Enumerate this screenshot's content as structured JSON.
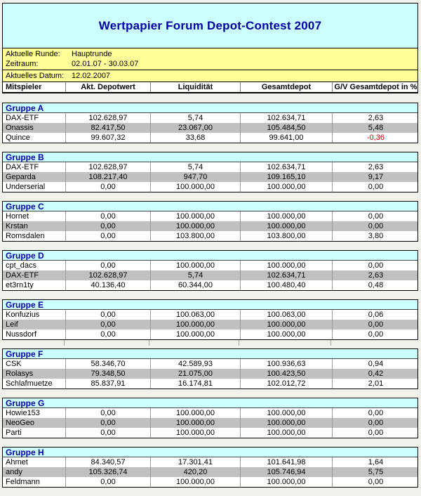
{
  "title": "Wertpapier Forum Depot-Contest 2007",
  "info": {
    "round_label": "Aktuelle Runde:",
    "round_value": "Hauptrunde",
    "period_label": "Zeitraum:",
    "period_value": "02.01.07 - 30.03.07",
    "date_label": "Aktuelles Datum:",
    "date_value": "12.02.2007"
  },
  "columns": [
    "Mitspieler",
    "Akt. Depotwert",
    "Liquidität",
    "Gesamtdepot",
    "G/V Gesamtdepot in %"
  ],
  "colors": {
    "banner_background": "#ccffff",
    "banner_text": "#0000a0",
    "info_background": "#ffff99",
    "alternate_row_background": "#c0c0c0",
    "negative_value_text": "#cc0000"
  },
  "groups": [
    {
      "name": "Gruppe A",
      "rows": [
        {
          "player": "DAX-ETF",
          "akt_depotwert": "102.628,97",
          "liquiditaet": "5,74",
          "gesamtdepot": "102.634,71",
          "gv_prozent": "2,63"
        },
        {
          "player": "Onassis",
          "akt_depotwert": "82.417,50",
          "liquiditaet": "23.067,00",
          "gesamtdepot": "105.484,50",
          "gv_prozent": "5,48"
        },
        {
          "player": "Quince",
          "akt_depotwert": "99.607,32",
          "liquiditaet": "33,68",
          "gesamtdepot": "99.641,00",
          "gv_prozent": "-0,36"
        }
      ]
    },
    {
      "name": "Gruppe B",
      "rows": [
        {
          "player": "DAX-ETF",
          "akt_depotwert": "102.628,97",
          "liquiditaet": "5,74",
          "gesamtdepot": "102.634,71",
          "gv_prozent": "2,63"
        },
        {
          "player": "Geparda",
          "akt_depotwert": "108.217,40",
          "liquiditaet": "947,70",
          "gesamtdepot": "109.165,10",
          "gv_prozent": "9,17"
        },
        {
          "player": "Underserial",
          "akt_depotwert": "0,00",
          "liquiditaet": "100.000,00",
          "gesamtdepot": "100.000,00",
          "gv_prozent": "0,00"
        }
      ]
    },
    {
      "name": "Gruppe C",
      "rows": [
        {
          "player": "Hornet",
          "akt_depotwert": "0,00",
          "liquiditaet": "100.000,00",
          "gesamtdepot": "100.000,00",
          "gv_prozent": "0,00"
        },
        {
          "player": "Krstan",
          "akt_depotwert": "0,00",
          "liquiditaet": "100.000,00",
          "gesamtdepot": "100.000,00",
          "gv_prozent": "0,00"
        },
        {
          "player": "Romsdalen",
          "akt_depotwert": "0,00",
          "liquiditaet": "103.800,00",
          "gesamtdepot": "103.800,00",
          "gv_prozent": "3,80"
        }
      ]
    },
    {
      "name": "Gruppe D",
      "rows": [
        {
          "player": "cpt_dacs",
          "akt_depotwert": "0,00",
          "liquiditaet": "100.000,00",
          "gesamtdepot": "100.000,00",
          "gv_prozent": "0,00"
        },
        {
          "player": "DAX-ETF",
          "akt_depotwert": "102.628,97",
          "liquiditaet": "5,74",
          "gesamtdepot": "102.634,71",
          "gv_prozent": "2,63"
        },
        {
          "player": "et3rn1ty",
          "akt_depotwert": "40.136,40",
          "liquiditaet": "60.344,00",
          "gesamtdepot": "100.480,40",
          "gv_prozent": "0,48"
        }
      ]
    },
    {
      "name": "Gruppe E",
      "ruled_gap_after": true,
      "rows": [
        {
          "player": "Konfuzius",
          "akt_depotwert": "0,00",
          "liquiditaet": "100.063,00",
          "gesamtdepot": "100.063,00",
          "gv_prozent": "0,06"
        },
        {
          "player": "Leif",
          "akt_depotwert": "0,00",
          "liquiditaet": "100.000,00",
          "gesamtdepot": "100.000,00",
          "gv_prozent": "0,00"
        },
        {
          "player": "Nussdorf",
          "akt_depotwert": "0,00",
          "liquiditaet": "100.000,00",
          "gesamtdepot": "100.000,00",
          "gv_prozent": "0,00"
        }
      ]
    },
    {
      "name": "Gruppe F",
      "rows": [
        {
          "player": "CSK",
          "akt_depotwert": "58.346,70",
          "liquiditaet": "42.589,93",
          "gesamtdepot": "100.936,63",
          "gv_prozent": "0,94"
        },
        {
          "player": "Rolasys",
          "akt_depotwert": "79.348,50",
          "liquiditaet": "21.075,00",
          "gesamtdepot": "100.423,50",
          "gv_prozent": "0,42"
        },
        {
          "player": "Schlafmuetze",
          "akt_depotwert": "85.837,91",
          "liquiditaet": "16.174,81",
          "gesamtdepot": "102.012,72",
          "gv_prozent": "2,01"
        }
      ]
    },
    {
      "name": "Gruppe G",
      "rows": [
        {
          "player": "Howie153",
          "akt_depotwert": "0,00",
          "liquiditaet": "100.000,00",
          "gesamtdepot": "100.000,00",
          "gv_prozent": "0,00"
        },
        {
          "player": "NeoGeo",
          "akt_depotwert": "0,00",
          "liquiditaet": "100.000,00",
          "gesamtdepot": "100.000,00",
          "gv_prozent": "0,00"
        },
        {
          "player": "Parti",
          "akt_depotwert": "0,00",
          "liquiditaet": "100.000,00",
          "gesamtdepot": "100.000,00",
          "gv_prozent": "0,00"
        }
      ]
    },
    {
      "name": "Gruppe H",
      "rows": [
        {
          "player": "Ahmet",
          "akt_depotwert": "84.340,57",
          "liquiditaet": "17.301,41",
          "gesamtdepot": "101.641,98",
          "gv_prozent": "1,64"
        },
        {
          "player": "andy",
          "akt_depotwert": "105.326,74",
          "liquiditaet": "420,20",
          "gesamtdepot": "105.746,94",
          "gv_prozent": "5,75"
        },
        {
          "player": "Feldmann",
          "akt_depotwert": "0,00",
          "liquiditaet": "100.000,00",
          "gesamtdepot": "100.000,00",
          "gv_prozent": "0,00"
        }
      ]
    }
  ]
}
